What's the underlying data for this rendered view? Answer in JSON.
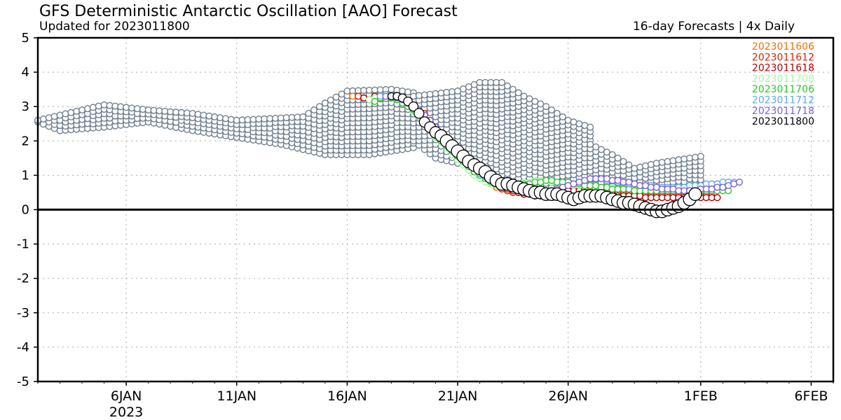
{
  "header": {
    "title": "GFS Deterministic Antarctic Oscillation [AAO] Forecast",
    "subtitle": "Updated for 2023011800",
    "right_note": "16-day Forecasts | 4x Daily"
  },
  "chart_data": {
    "type": "scatter",
    "title": "GFS Deterministic Antarctic Oscillation [AAO] Forecast",
    "ylim": [
      -5,
      5
    ],
    "yticks": [
      "5",
      "4",
      "3",
      "2",
      "1",
      "0",
      "-1",
      "-2",
      "-3",
      "-4",
      "-5"
    ],
    "xlim": [
      "2023-01-02",
      "2023-02-07"
    ],
    "xticks": [
      {
        "label": "6JAN",
        "date": "2023-01-06",
        "sub": "2023"
      },
      {
        "label": "11JAN",
        "date": "2023-01-11",
        "sub": ""
      },
      {
        "label": "16JAN",
        "date": "2023-01-16",
        "sub": ""
      },
      {
        "label": "21JAN",
        "date": "2023-01-21",
        "sub": ""
      },
      {
        "label": "26JAN",
        "date": "2023-01-26",
        "sub": ""
      },
      {
        "label": "1FEB",
        "date": "2023-02-01",
        "sub": ""
      },
      {
        "label": "6FEB",
        "date": "2023-02-06",
        "sub": ""
      }
    ],
    "grid": true,
    "legend_position": "top-right",
    "zero_line": true,
    "older_runs_color": "#708090",
    "older_runs_bands": [
      {
        "start": "2023-01-02",
        "end": "2023-01-19",
        "upper": [
          [
            0,
            2.6
          ],
          [
            2,
            2.9
          ],
          [
            3,
            3.05
          ],
          [
            5,
            2.9
          ],
          [
            7,
            2.8
          ],
          [
            9,
            2.6
          ],
          [
            12,
            2.7
          ],
          [
            13,
            3.1
          ],
          [
            14,
            3.45
          ],
          [
            16,
            3.5
          ],
          [
            17,
            3.4
          ]
        ],
        "lower": [
          [
            0,
            2.55
          ],
          [
            1,
            2.3
          ],
          [
            3,
            2.4
          ],
          [
            5,
            2.55
          ],
          [
            7,
            2.3
          ],
          [
            9,
            2.1
          ],
          [
            11,
            1.9
          ],
          [
            13,
            1.6
          ],
          [
            15,
            1.6
          ],
          [
            17,
            1.8
          ]
        ]
      },
      {
        "start": "2023-01-19",
        "end": "2023-01-27",
        "upper": [
          [
            0,
            3.3
          ],
          [
            2,
            3.45
          ],
          [
            3,
            3.7
          ],
          [
            4,
            3.7
          ],
          [
            5,
            3.3
          ],
          [
            6,
            3.0
          ],
          [
            7,
            2.6
          ],
          [
            8,
            2.4
          ],
          [
            8.5,
            2.1
          ]
        ],
        "lower": [
          [
            0,
            2.0
          ],
          [
            1,
            1.5
          ],
          [
            2,
            1.35
          ],
          [
            3,
            1.2
          ],
          [
            4,
            1.0
          ],
          [
            5,
            0.7
          ],
          [
            6,
            0.5
          ],
          [
            7,
            0.6
          ],
          [
            8.5,
            0.8
          ]
        ]
      },
      {
        "start": "2023-01-27",
        "end": "2023-02-01",
        "upper": [
          [
            0,
            1.9
          ],
          [
            1,
            1.6
          ],
          [
            2,
            1.2
          ],
          [
            3,
            1.35
          ],
          [
            4,
            1.45
          ],
          [
            5,
            1.55
          ]
        ],
        "lower": [
          [
            0,
            0.6
          ],
          [
            1,
            0.7
          ],
          [
            2,
            0.5
          ],
          [
            3,
            0.6
          ],
          [
            4,
            0.7
          ],
          [
            5,
            0.6
          ]
        ]
      }
    ],
    "series": [
      {
        "name": "2023011606",
        "color": "#ff6a00",
        "start": "2023-01-16T06",
        "values": [
          3.3,
          3.3,
          3.25,
          3.2,
          3.3,
          3.3,
          3.3,
          3.25,
          3.2,
          3.15,
          3.1,
          3.0,
          2.9,
          2.8,
          2.6,
          2.4,
          2.2,
          2.0,
          1.8,
          1.6,
          1.4,
          1.25,
          1.1,
          0.95,
          0.85,
          0.75,
          0.65,
          0.6,
          0.55,
          0.5,
          0.5,
          0.45,
          0.45,
          0.4,
          0.4,
          0.4,
          0.45,
          0.5,
          0.55,
          0.6,
          0.6,
          0.6,
          0.6,
          0.6,
          0.6,
          0.55,
          0.5,
          0.5,
          0.5,
          0.5,
          0.5,
          0.5,
          0.5,
          0.5,
          0.5,
          0.5,
          0.45,
          0.45,
          0.45,
          0.45,
          0.45,
          0.45,
          0.45,
          0.45,
          0.45
        ]
      },
      {
        "name": "2023011612",
        "color": "#e02000",
        "start": "2023-01-16T12",
        "values": [
          3.3,
          3.25,
          3.2,
          3.3,
          3.3,
          3.3,
          3.3,
          3.25,
          3.2,
          3.1,
          3.0,
          2.9,
          2.8,
          2.6,
          2.4,
          2.2,
          2.0,
          1.8,
          1.6,
          1.45,
          1.3,
          1.15,
          1.0,
          0.9,
          0.8,
          0.7,
          0.6,
          0.55,
          0.5,
          0.5,
          0.45,
          0.45,
          0.4,
          0.4,
          0.4,
          0.45,
          0.5,
          0.55,
          0.55,
          0.6,
          0.6,
          0.6,
          0.55,
          0.55,
          0.5,
          0.5,
          0.45,
          0.45,
          0.45,
          0.45,
          0.4,
          0.4,
          0.4,
          0.4,
          0.4,
          0.4,
          0.4,
          0.4,
          0.4,
          0.4,
          0.4,
          0.4,
          0.4,
          0.4,
          0.4
        ]
      },
      {
        "name": "2023011618",
        "color": "#b00000",
        "start": "2023-01-16T18",
        "values": [
          3.25,
          3.2,
          3.3,
          3.3,
          3.35,
          3.3,
          3.25,
          3.2,
          3.1,
          3.0,
          2.9,
          2.75,
          2.6,
          2.4,
          2.2,
          2.0,
          1.85,
          1.7,
          1.5,
          1.35,
          1.2,
          1.05,
          0.95,
          0.85,
          0.75,
          0.65,
          0.6,
          0.55,
          0.5,
          0.45,
          0.45,
          0.4,
          0.4,
          0.4,
          0.45,
          0.5,
          0.5,
          0.55,
          0.55,
          0.55,
          0.5,
          0.5,
          0.5,
          0.45,
          0.45,
          0.45,
          0.4,
          0.4,
          0.4,
          0.4,
          0.4,
          0.35,
          0.35,
          0.35,
          0.35,
          0.35,
          0.35,
          0.35,
          0.35,
          0.35,
          0.35,
          0.35,
          0.35,
          0.35,
          0.35
        ]
      },
      {
        "name": "2023011700",
        "color": "#9efc9e",
        "start": "2023-01-17T00",
        "values": [
          3.2,
          3.25,
          3.3,
          3.3,
          3.25,
          3.2,
          3.1,
          3.0,
          2.85,
          2.7,
          2.5,
          2.3,
          2.1,
          1.95,
          1.8,
          1.6,
          1.45,
          1.3,
          1.15,
          1.0,
          0.9,
          0.8,
          0.75,
          0.7,
          0.7,
          0.7,
          0.75,
          0.75,
          0.8,
          0.8,
          0.85,
          0.85,
          0.85,
          0.8,
          0.8,
          0.75,
          0.75,
          0.7,
          0.7,
          0.7,
          0.7,
          0.65,
          0.65,
          0.65,
          0.65,
          0.6,
          0.6,
          0.6,
          0.6,
          0.6,
          0.6,
          0.6,
          0.6,
          0.6,
          0.6,
          0.6,
          0.6,
          0.6,
          0.6,
          0.6,
          0.6,
          0.6,
          0.6,
          0.6,
          0.6
        ]
      },
      {
        "name": "2023011706",
        "color": "#28c828",
        "start": "2023-01-17T06",
        "values": [
          3.15,
          3.25,
          3.3,
          3.25,
          3.2,
          3.1,
          3.0,
          2.9,
          2.75,
          2.55,
          2.35,
          2.15,
          2.0,
          1.85,
          1.7,
          1.55,
          1.4,
          1.25,
          1.1,
          1.0,
          0.9,
          0.8,
          0.75,
          0.7,
          0.7,
          0.7,
          0.7,
          0.75,
          0.75,
          0.8,
          0.8,
          0.85,
          0.85,
          0.8,
          0.8,
          0.8,
          0.75,
          0.75,
          0.7,
          0.7,
          0.7,
          0.65,
          0.65,
          0.6,
          0.6,
          0.6,
          0.6,
          0.55,
          0.55,
          0.55,
          0.55,
          0.55,
          0.55,
          0.55,
          0.55,
          0.55,
          0.55,
          0.55,
          0.55,
          0.55,
          0.55,
          0.55,
          0.55,
          0.55,
          0.55
        ]
      },
      {
        "name": "2023011712",
        "color": "#5aaaf0",
        "start": "2023-01-17T12",
        "values": [
          3.3,
          3.35,
          3.3,
          3.25,
          3.2,
          3.1,
          3.0,
          2.85,
          2.7,
          2.5,
          2.3,
          2.1,
          1.95,
          1.8,
          1.65,
          1.5,
          1.35,
          1.2,
          1.05,
          0.95,
          0.85,
          0.75,
          0.7,
          0.65,
          0.6,
          0.55,
          0.55,
          0.5,
          0.5,
          0.5,
          0.5,
          0.55,
          0.6,
          0.65,
          0.7,
          0.75,
          0.8,
          0.85,
          0.9,
          0.9,
          0.9,
          0.85,
          0.85,
          0.8,
          0.8,
          0.75,
          0.75,
          0.7,
          0.7,
          0.7,
          0.65,
          0.65,
          0.65,
          0.65,
          0.65,
          0.65,
          0.7,
          0.7,
          0.7,
          0.75,
          0.75,
          0.75,
          0.8,
          0.8,
          0.8
        ]
      },
      {
        "name": "2023011718",
        "color": "#8060d8",
        "start": "2023-01-17T18",
        "values": [
          3.3,
          3.3,
          3.25,
          3.2,
          3.1,
          3.0,
          2.9,
          2.75,
          2.6,
          2.4,
          2.2,
          2.05,
          1.9,
          1.75,
          1.6,
          1.45,
          1.3,
          1.15,
          1.0,
          0.9,
          0.8,
          0.7,
          0.65,
          0.6,
          0.55,
          0.5,
          0.5,
          0.5,
          0.5,
          0.55,
          0.55,
          0.6,
          0.65,
          0.7,
          0.75,
          0.8,
          0.85,
          0.9,
          0.9,
          0.9,
          0.9,
          0.85,
          0.85,
          0.8,
          0.8,
          0.75,
          0.7,
          0.7,
          0.65,
          0.65,
          0.6,
          0.6,
          0.6,
          0.55,
          0.55,
          0.55,
          0.55,
          0.6,
          0.6,
          0.6,
          0.65,
          0.65,
          0.7,
          0.75,
          0.8
        ]
      },
      {
        "name": "2023011800",
        "color": "#000000",
        "start": "2023-01-18T00",
        "values": [
          3.3,
          3.3,
          3.25,
          3.15,
          3.0,
          2.8,
          2.55,
          2.4,
          2.25,
          2.15,
          2.0,
          1.85,
          1.7,
          1.55,
          1.4,
          1.3,
          1.2,
          1.1,
          0.95,
          0.85,
          0.75,
          0.75,
          0.7,
          0.65,
          0.6,
          0.55,
          0.5,
          0.5,
          0.45,
          0.45,
          0.45,
          0.4,
          0.35,
          0.3,
          0.35,
          0.4,
          0.4,
          0.4,
          0.4,
          0.35,
          0.3,
          0.25,
          0.2,
          0.2,
          0.15,
          0.1,
          0.05,
          0.0,
          -0.05,
          -0.05,
          0.0,
          0.05,
          0.1,
          0.2,
          0.3,
          0.45
        ]
      }
    ]
  }
}
